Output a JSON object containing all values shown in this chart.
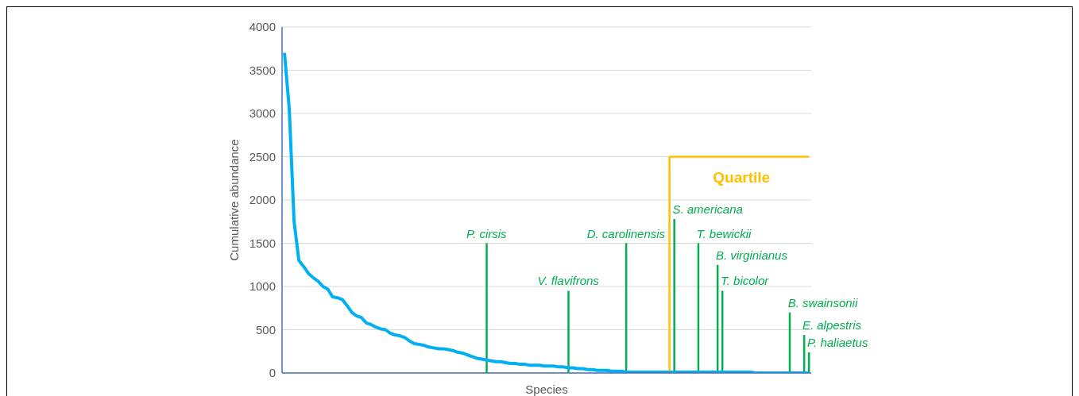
{
  "chart_data": {
    "type": "line",
    "xlabel": "Species",
    "ylabel": "Cumulative abundance",
    "categories": [
      null,
      null,
      null,
      null,
      null,
      null,
      null,
      null,
      null,
      null,
      null,
      null,
      null,
      null,
      null,
      null,
      null,
      null,
      null,
      null,
      null,
      null,
      null,
      null,
      null,
      null,
      null,
      null,
      null,
      null,
      null,
      null,
      null,
      null,
      null,
      null,
      null,
      null,
      null,
      null,
      null,
      null,
      null,
      null,
      null,
      null,
      null,
      null,
      null,
      null,
      null,
      null,
      null,
      null,
      null,
      null,
      null,
      null,
      null,
      null,
      null,
      null,
      null,
      null,
      null,
      null,
      null,
      null,
      null,
      null,
      null,
      null,
      null,
      null,
      null,
      null,
      null,
      null,
      null,
      null,
      null,
      null,
      null,
      null,
      null,
      null,
      null,
      null,
      null,
      null,
      null,
      null,
      null,
      null,
      null,
      null,
      null,
      null,
      null,
      null,
      null,
      null,
      null,
      null,
      null,
      null,
      null,
      null,
      null,
      null
    ],
    "series": [
      {
        "color": "#00b0f0",
        "values": [
          3700,
          3050,
          1750,
          1300,
          1230,
          1150,
          1100,
          1060,
          1000,
          970,
          880,
          870,
          850,
          780,
          700,
          660,
          640,
          580,
          560,
          530,
          510,
          500,
          460,
          440,
          430,
          410,
          370,
          340,
          330,
          320,
          300,
          290,
          280,
          280,
          270,
          260,
          240,
          230,
          210,
          190,
          170,
          160,
          150,
          140,
          130,
          130,
          120,
          110,
          110,
          100,
          100,
          90,
          90,
          90,
          80,
          80,
          80,
          70,
          70,
          60,
          60,
          50,
          50,
          40,
          40,
          30,
          30,
          30,
          20,
          20,
          20,
          10,
          10,
          10,
          10,
          10,
          10,
          10,
          10,
          10,
          10,
          10,
          10,
          10,
          10,
          10,
          10,
          10,
          10,
          10,
          10,
          10,
          10,
          10,
          10,
          10,
          10,
          10,
          0,
          0,
          0,
          0,
          0,
          0,
          0,
          0,
          0,
          0,
          0,
          0
        ]
      },
      {
        "type": "bar",
        "color": "#00b050",
        "values": [
          null,
          null,
          null,
          null,
          null,
          null,
          null,
          null,
          null,
          null,
          null,
          null,
          null,
          null,
          null,
          null,
          null,
          null,
          null,
          null,
          null,
          null,
          null,
          null,
          null,
          null,
          null,
          null,
          null,
          null,
          null,
          null,
          null,
          null,
          null,
          null,
          null,
          null,
          null,
          null,
          null,
          null,
          1500,
          null,
          null,
          null,
          null,
          null,
          null,
          null,
          null,
          null,
          null,
          null,
          null,
          null,
          null,
          null,
          null,
          950,
          null,
          null,
          null,
          null,
          null,
          null,
          null,
          null,
          null,
          null,
          null,
          1500,
          null,
          null,
          null,
          null,
          null,
          null,
          null,
          null,
          null,
          1780,
          null,
          null,
          null,
          null,
          1500,
          null,
          null,
          null,
          1250,
          950,
          null,
          null,
          null,
          null,
          null,
          null,
          null,
          null,
          null,
          null,
          null,
          null,
          null,
          700,
          null,
          null,
          440,
          240
        ]
      },
      {
        "type": "bar",
        "color": "#ffc000",
        "values": [
          null,
          null,
          null,
          null,
          null,
          null,
          null,
          null,
          null,
          null,
          null,
          null,
          null,
          null,
          null,
          null,
          null,
          null,
          null,
          null,
          null,
          null,
          null,
          null,
          null,
          null,
          null,
          null,
          null,
          null,
          null,
          null,
          null,
          null,
          null,
          null,
          null,
          null,
          null,
          null,
          null,
          null,
          null,
          null,
          null,
          null,
          null,
          null,
          null,
          null,
          null,
          null,
          null,
          null,
          null,
          null,
          null,
          null,
          null,
          null,
          null,
          null,
          null,
          null,
          null,
          null,
          null,
          null,
          null,
          null,
          null,
          null,
          null,
          null,
          null,
          null,
          null,
          null,
          null,
          null,
          2500,
          null,
          null,
          null,
          null,
          null,
          null,
          null,
          null,
          null,
          null,
          null,
          null,
          null,
          null,
          null,
          null,
          null,
          null,
          null,
          null,
          null,
          null,
          null,
          null,
          null,
          null,
          null,
          null,
          null
        ]
      },
      {
        "type": "line",
        "color": "#ffc000",
        "values": [
          null,
          null,
          null,
          null,
          null,
          null,
          null,
          null,
          null,
          null,
          null,
          null,
          null,
          null,
          null,
          null,
          null,
          null,
          null,
          null,
          null,
          null,
          null,
          null,
          null,
          null,
          null,
          null,
          null,
          null,
          null,
          null,
          null,
          null,
          null,
          null,
          null,
          null,
          null,
          null,
          null,
          null,
          null,
          null,
          null,
          null,
          null,
          null,
          null,
          null,
          null,
          null,
          null,
          null,
          null,
          null,
          null,
          null,
          null,
          null,
          null,
          null,
          null,
          null,
          null,
          null,
          null,
          null,
          null,
          null,
          null,
          null,
          null,
          null,
          null,
          null,
          null,
          null,
          null,
          null,
          2500,
          2500,
          2500,
          2500,
          2500,
          2500,
          2500,
          2500,
          2500,
          2500,
          2500,
          2500,
          2500,
          2500,
          2500,
          2500,
          2500,
          2500,
          2500,
          2500,
          2500,
          2500,
          2500,
          2500,
          2500,
          2500,
          2500,
          2500,
          2500,
          2500
        ]
      }
    ],
    "annotations": [
      "P. cirsis",
      "V. flavifrons",
      "D. carolinensis",
      "S. americana",
      "T. bewickii",
      "B. virginianus",
      "T. bicolor",
      "B. swainsonii",
      "E. alpestris",
      "P. haliaetus",
      "Quartile"
    ],
    "ylim": [
      0,
      4000
    ],
    "yticks": [
      0,
      500,
      1000,
      1500,
      2000,
      2500,
      3000,
      3500,
      4000
    ],
    "grid": "y",
    "legend": false,
    "marker": "none",
    "line_style": "solid",
    "tick_labels": "y"
  }
}
